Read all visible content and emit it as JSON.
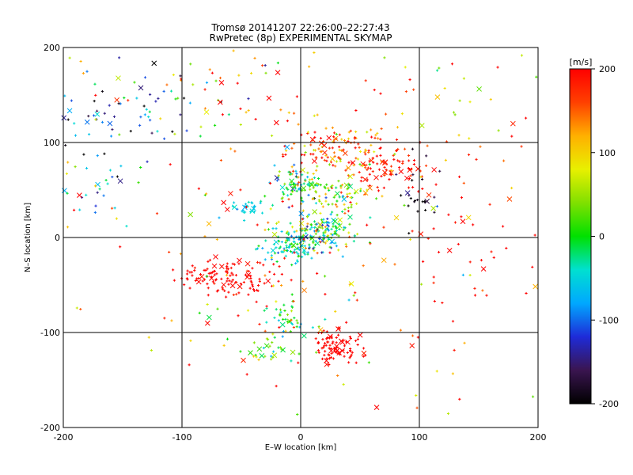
{
  "chart_data": {
    "type": "scatter",
    "title_line1": "Tromsø 20141207 22:26:00–22:27:43",
    "title_line2": "RwPretec (8p) EXPERIMENTAL SKYMAP",
    "xlabel": "E–W location [km]",
    "ylabel": "N–S location [km]",
    "xlim": [
      -200,
      200
    ],
    "ylim": [
      -200,
      200
    ],
    "xticks": [
      -200,
      -100,
      0,
      100,
      200
    ],
    "yticks": [
      -200,
      -100,
      0,
      100,
      200
    ],
    "grid": true,
    "markers": {
      "dot": "+",
      "cross": "×"
    },
    "colorbar": {
      "label": "[m/s]",
      "range": [
        -200,
        200
      ],
      "ticks": [
        200,
        100,
        0,
        -100,
        -200
      ],
      "colormap": [
        "#000000",
        "#3a1550",
        "#1e2bd8",
        "#00a8ff",
        "#00e0d0",
        "#00e000",
        "#80e000",
        "#e8f000",
        "#ffb000",
        "#ff4000",
        "#ff0000"
      ]
    },
    "clusters": [
      {
        "x": 30,
        "y": 95,
        "sx": 22,
        "sy": 12,
        "n": 110,
        "v": 150,
        "vs": 60
      },
      {
        "x": 70,
        "y": 75,
        "sx": 18,
        "sy": 12,
        "n": 80,
        "v": 190,
        "vs": 20
      },
      {
        "x": 0,
        "y": 55,
        "sx": 12,
        "sy": 10,
        "n": 90,
        "v": 0,
        "vs": 60
      },
      {
        "x": 35,
        "y": 45,
        "sx": 14,
        "sy": 10,
        "n": 70,
        "v": 60,
        "vs": 60
      },
      {
        "x": 15,
        "y": 5,
        "sx": 14,
        "sy": 10,
        "n": 160,
        "v": -20,
        "vs": 60
      },
      {
        "x": -10,
        "y": -10,
        "sx": 10,
        "sy": 8,
        "n": 80,
        "v": -40,
        "vs": 30
      },
      {
        "x": -60,
        "y": -40,
        "sx": 22,
        "sy": 10,
        "n": 120,
        "v": 200,
        "vs": 10
      },
      {
        "x": 30,
        "y": -115,
        "sx": 10,
        "sy": 8,
        "n": 90,
        "v": 200,
        "vs": 5
      },
      {
        "x": -10,
        "y": -85,
        "sx": 8,
        "sy": 10,
        "n": 40,
        "v": -10,
        "vs": 40
      },
      {
        "x": -45,
        "y": 30,
        "sx": 8,
        "sy": 5,
        "n": 25,
        "v": -50,
        "vs": 20
      },
      {
        "x": 100,
        "y": 50,
        "sx": 10,
        "sy": 15,
        "n": 25,
        "v": -180,
        "vs": 40
      },
      {
        "x": -150,
        "y": 130,
        "sx": 35,
        "sy": 30,
        "n": 60,
        "v": -140,
        "vs": 70
      },
      {
        "x": -170,
        "y": 60,
        "sx": 20,
        "sy": 25,
        "n": 25,
        "v": -60,
        "vs": 40
      },
      {
        "x": 110,
        "y": 140,
        "sx": 40,
        "sy": 35,
        "n": 35,
        "v": 90,
        "vs": 60
      },
      {
        "x": 0,
        "y": 0,
        "sx": 110,
        "sy": 100,
        "n": 240,
        "v": 150,
        "vs": 80
      },
      {
        "x": -80,
        "y": 160,
        "sx": 60,
        "sy": 25,
        "n": 50,
        "v": 80,
        "vs": 140
      },
      {
        "x": 150,
        "y": -20,
        "sx": 30,
        "sy": 50,
        "n": 30,
        "v": 200,
        "vs": 10
      },
      {
        "x": -20,
        "y": -120,
        "sx": 15,
        "sy": 8,
        "n": 30,
        "v": 30,
        "vs": 40
      }
    ]
  }
}
